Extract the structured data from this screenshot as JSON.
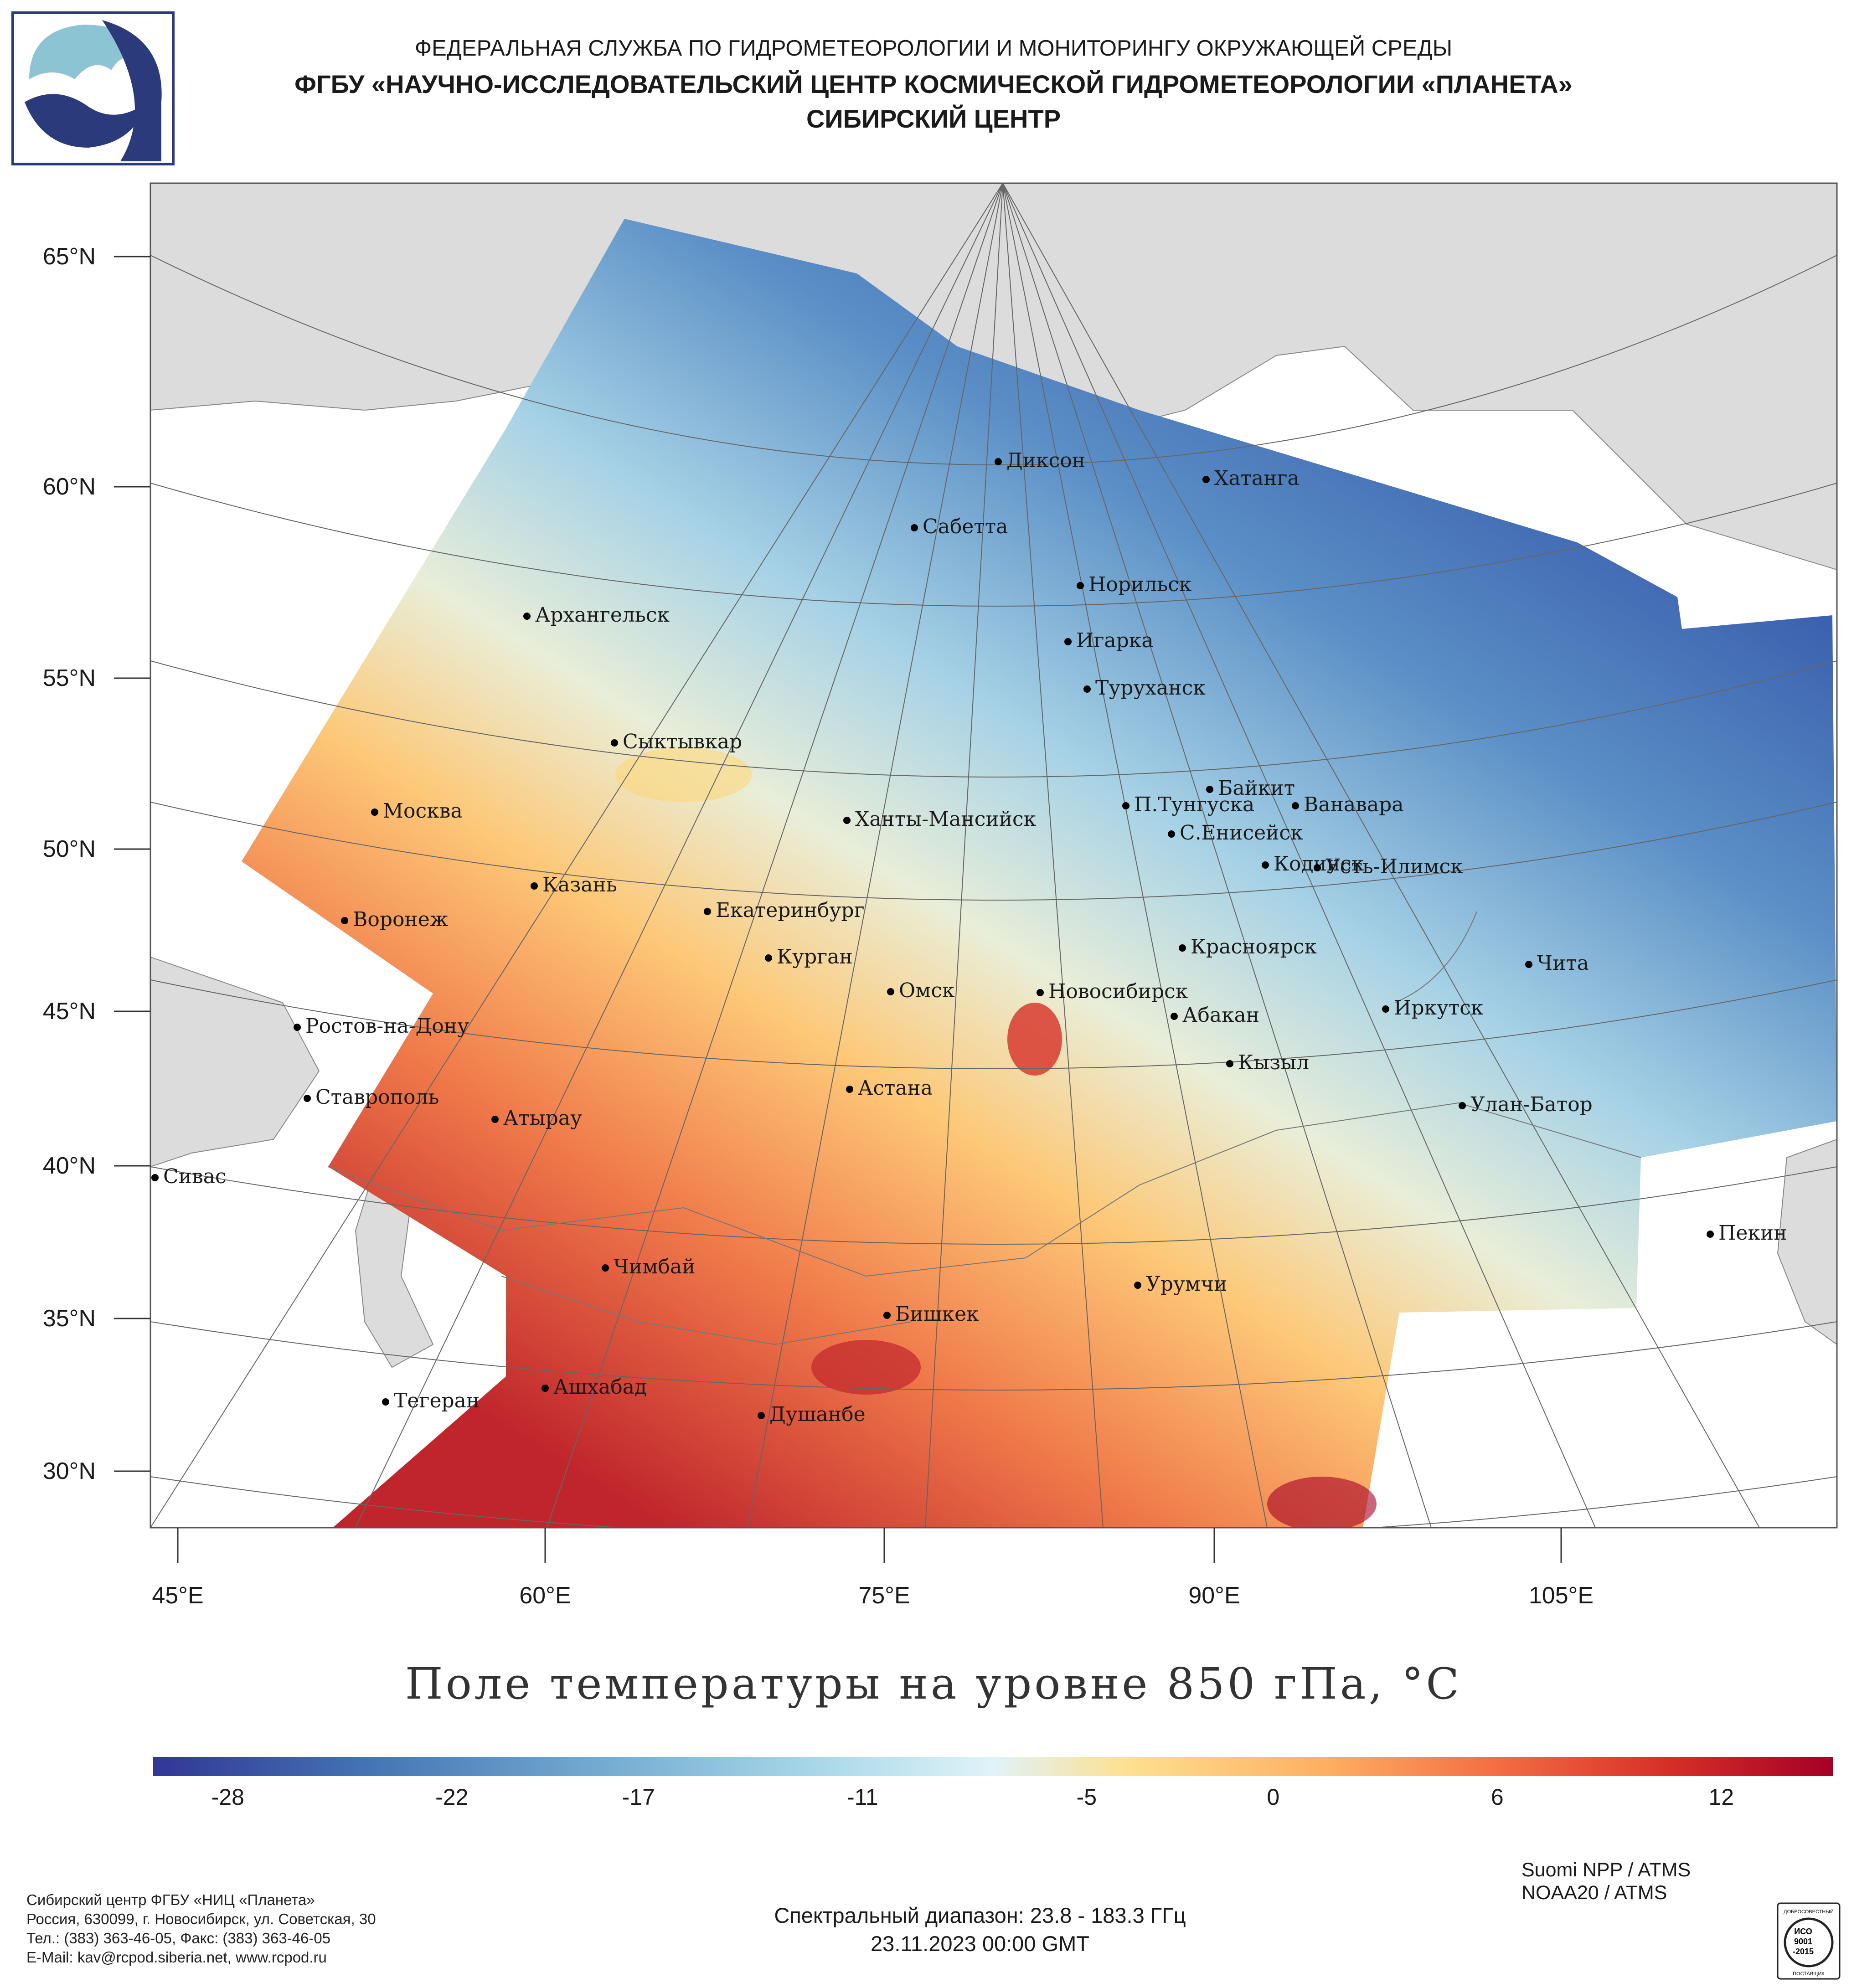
{
  "header": {
    "line1": "ФЕДЕРАЛЬНАЯ СЛУЖБА ПО ГИДРОМЕТЕОРОЛОГИИ И МОНИТОРИНГУ ОКРУЖАЮЩЕЙ СРЕДЫ",
    "line2": "ФГБУ «НАУЧНО-ИССЛЕДОВАТЕЛЬСКИЙ ЦЕНТР КОСМИЧЕСКОЙ ГИДРОМЕТЕОРОЛОГИИ «ПЛАНЕТА»",
    "line3": "СИБИРСКИЙ ЦЕНТР"
  },
  "map": {
    "title": "Поле температуры на уровне 850 гПа, °C",
    "lat_labels": [
      "65°N",
      "60°N",
      "55°N",
      "50°N",
      "45°N",
      "40°N",
      "35°N",
      "30°N"
    ],
    "lon_labels": [
      "45°E",
      "60°E",
      "75°E",
      "90°E",
      "105°E"
    ],
    "cities": [
      {
        "name": "Диксон"
      },
      {
        "name": "Хатанга"
      },
      {
        "name": "Сабетта"
      },
      {
        "name": "Норильск"
      },
      {
        "name": "Архангельск"
      },
      {
        "name": "Игарка"
      },
      {
        "name": "Туруханск"
      },
      {
        "name": "Сыктывкар"
      },
      {
        "name": "Байкит"
      },
      {
        "name": "Москва"
      },
      {
        "name": "П.Тунгуска"
      },
      {
        "name": "Ванавара"
      },
      {
        "name": "Ханты-Мансийск"
      },
      {
        "name": "С.Енисейск"
      },
      {
        "name": "Кодинск"
      },
      {
        "name": "Усть-Илимск"
      },
      {
        "name": "Казань"
      },
      {
        "name": "Екатеринбург"
      },
      {
        "name": "Воронеж"
      },
      {
        "name": "Красноярск"
      },
      {
        "name": "Курган"
      },
      {
        "name": "Чита"
      },
      {
        "name": "Омск"
      },
      {
        "name": "Новосибирск"
      },
      {
        "name": "Иркутск"
      },
      {
        "name": "Ростов-на-Дону"
      },
      {
        "name": "Абакан"
      },
      {
        "name": "Кызыл"
      },
      {
        "name": "Ставрополь"
      },
      {
        "name": "Астана"
      },
      {
        "name": "Улан-Батор"
      },
      {
        "name": "Атырау"
      },
      {
        "name": "Сивас"
      },
      {
        "name": "Пекин"
      },
      {
        "name": "Чимбай"
      },
      {
        "name": "Урумчи"
      },
      {
        "name": "Бишкек"
      },
      {
        "name": "Ашхабад"
      },
      {
        "name": "Тегеран"
      },
      {
        "name": "Душанбе"
      }
    ]
  },
  "legend": {
    "ticks": [
      "-28",
      "-22",
      "-17",
      "-11",
      "-5",
      "0",
      "6",
      "12"
    ],
    "range": [
      -30,
      15
    ],
    "colors": [
      "#313695",
      "#4575b4",
      "#74add1",
      "#abd9e9",
      "#e0f3f8",
      "#fee090",
      "#fdae61",
      "#f46d43",
      "#d73027",
      "#a50026"
    ]
  },
  "satellites": [
    "Suomi NPP / ATMS",
    "NOAA20 / ATMS"
  ],
  "footer_left": [
    "Сибирский центр ФГБУ «НИЦ «Планета»",
    "Россия, 630099, г. Новосибирск, ул. Советская, 30",
    "Тел.: (383) 363-46-05, Факс: (383) 363-46-05",
    "E-Mail: kav@rcpod.siberia.net, www.rcpod.ru"
  ],
  "footer_center": {
    "spectral": "Спектральный диапазон: 23.8 - 183.3 ГГц",
    "datetime": "23.11.2023 00:00 GMT"
  },
  "iso": {
    "text1": "ДОБРОСОВЕСТНЫЙ",
    "text2": "ИСО",
    "text3": "9001",
    "text4": "-2015",
    "text5": "ПОСТАВЩИК"
  },
  "colors": {
    "brand": "#2b3a7a",
    "land": "#dcdcdc",
    "border": "#888888"
  }
}
